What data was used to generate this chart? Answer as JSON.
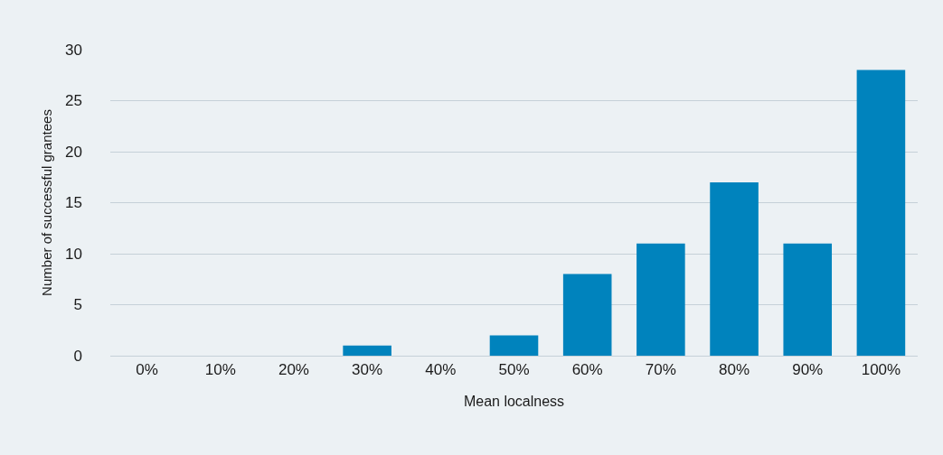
{
  "chart_data": {
    "type": "bar",
    "xlabel": "Mean localness",
    "ylabel": "Number of successful grantees",
    "categories": [
      "0%",
      "10%",
      "20%",
      "30%",
      "40%",
      "50%",
      "60%",
      "70%",
      "80%",
      "90%",
      "100%"
    ],
    "values": [
      0,
      0,
      0,
      1,
      0,
      2,
      8,
      11,
      17,
      11,
      28
    ],
    "color": "#0083bd",
    "ylim": [
      0,
      30
    ],
    "yticks": [
      0,
      5,
      10,
      15,
      20,
      25,
      30
    ],
    "grid": "y",
    "legend": false
  }
}
